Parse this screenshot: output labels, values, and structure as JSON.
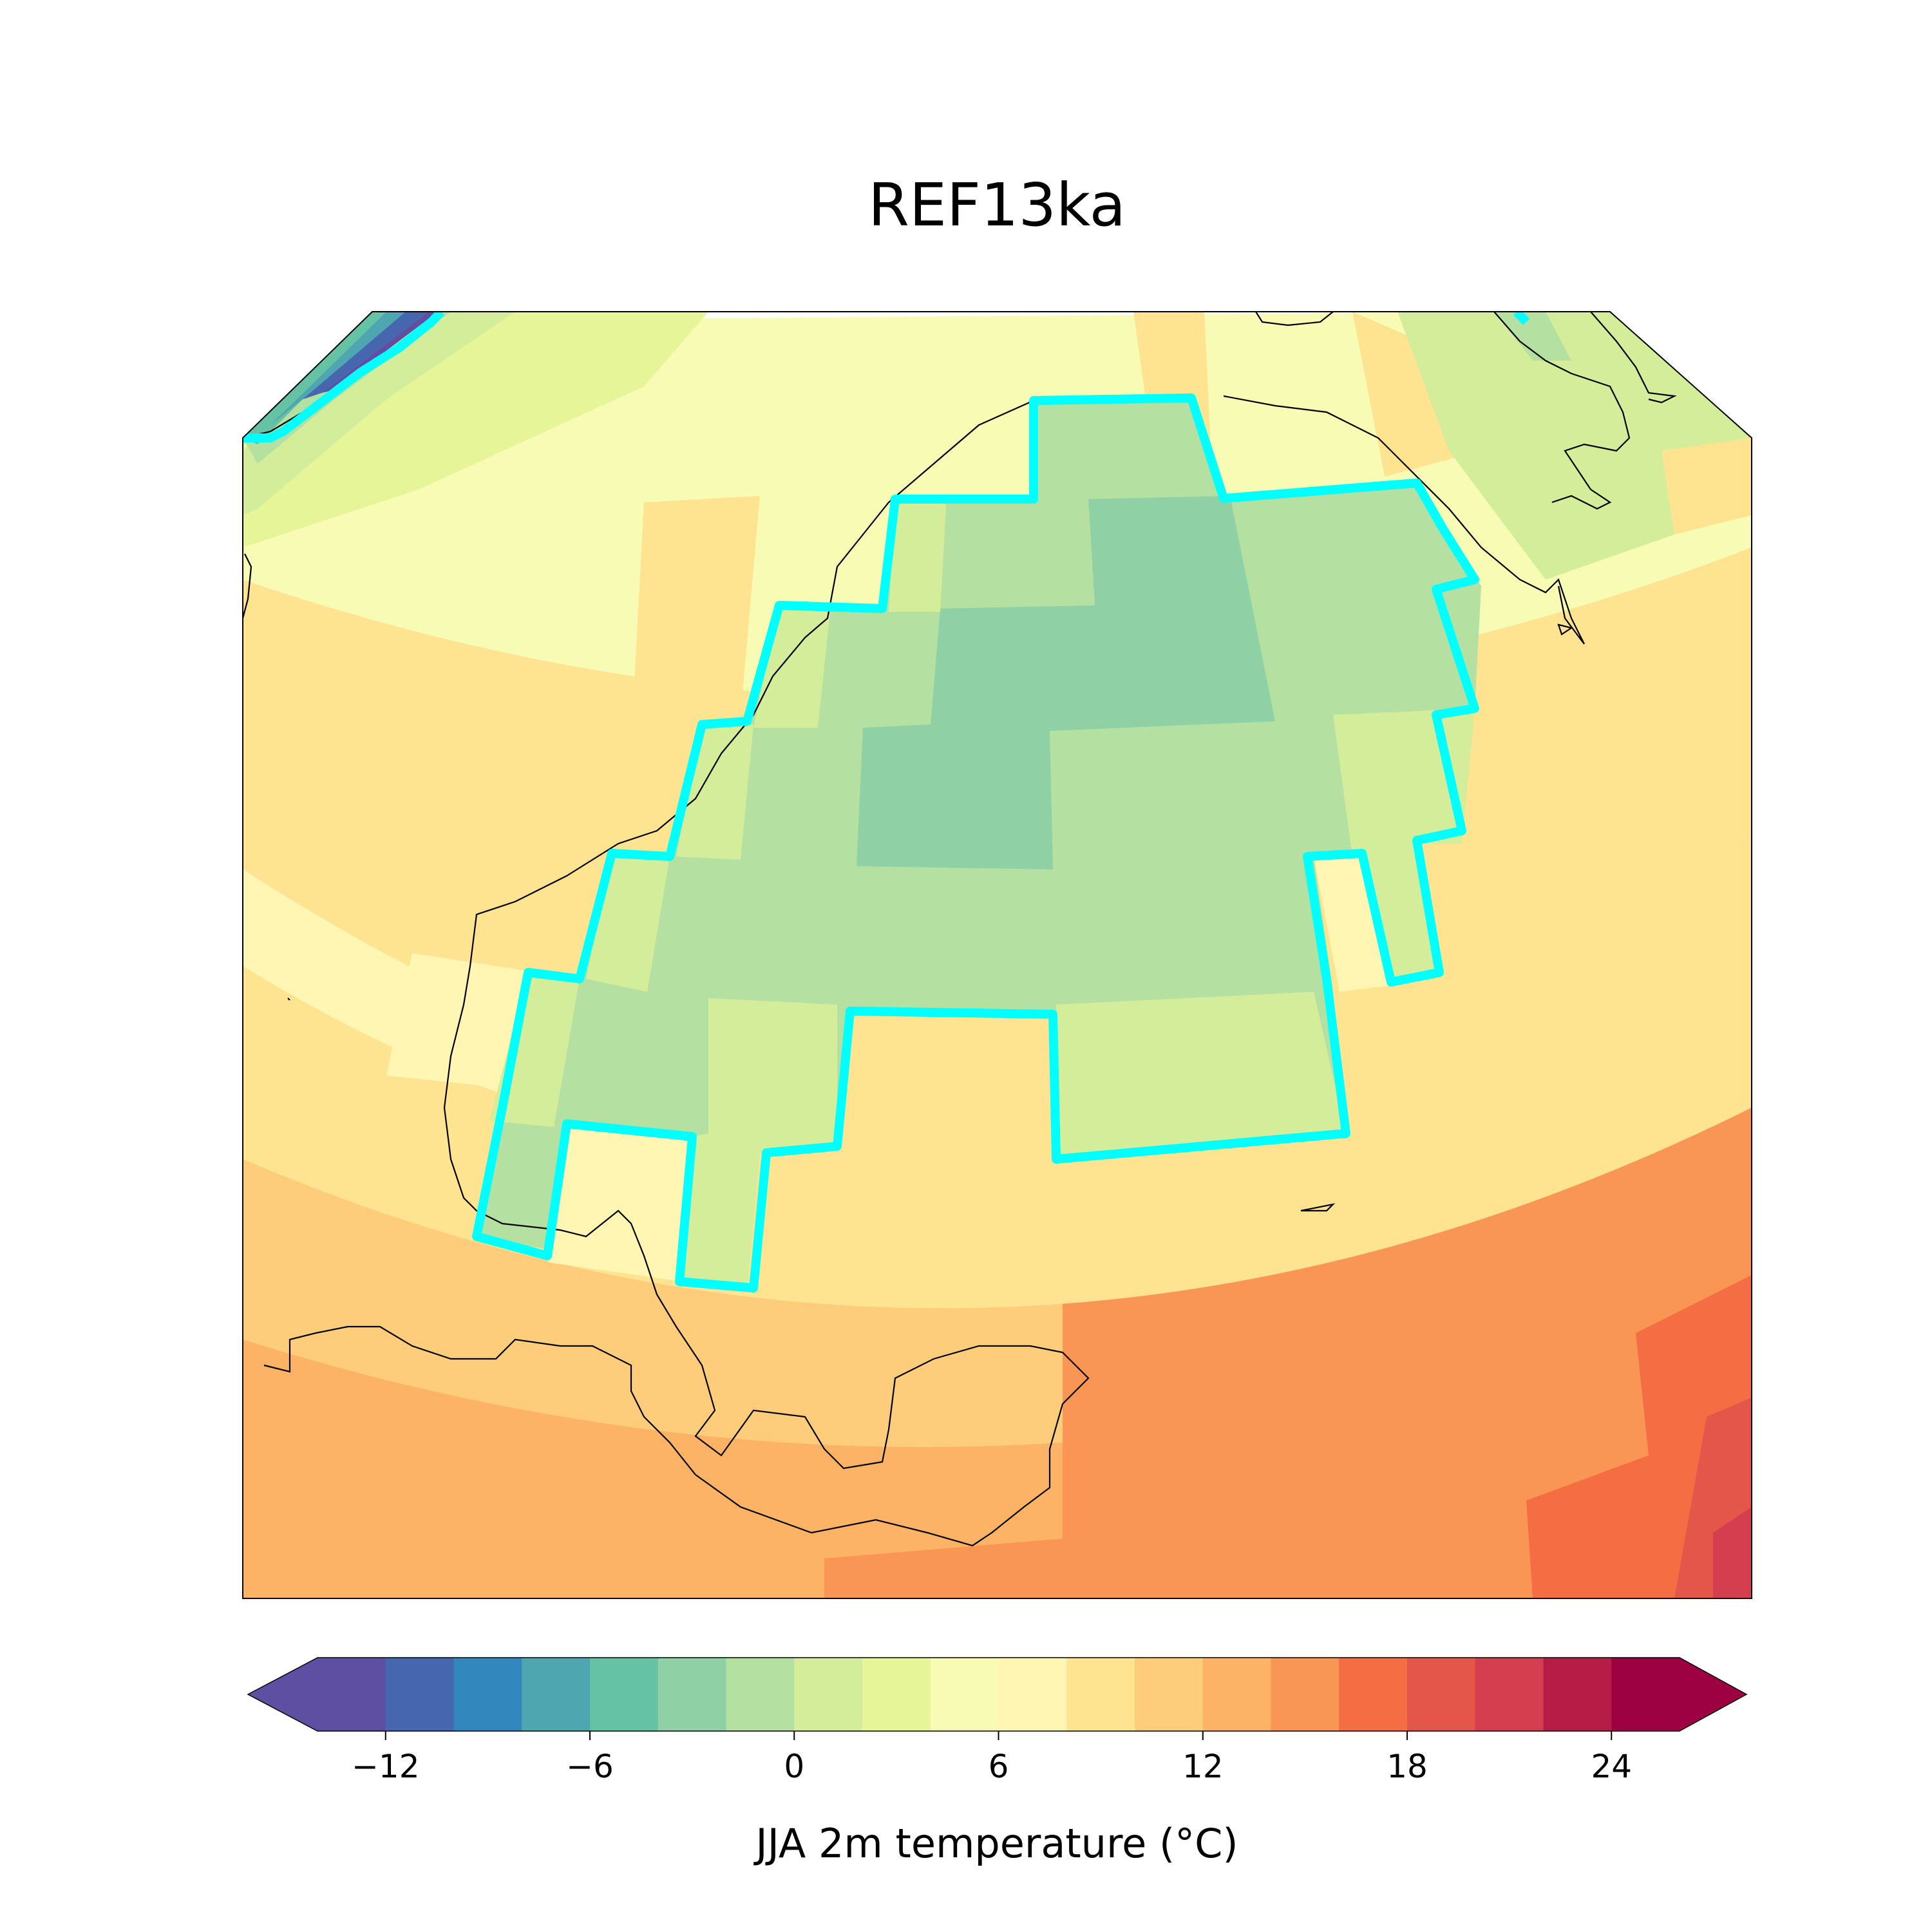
{
  "title": "REF13ka",
  "colorbar": {
    "label": "JJA 2m temperature (°C)",
    "min": -14,
    "max": 26,
    "step": 2,
    "extend": "both",
    "ticks": [
      -12,
      -6,
      0,
      6,
      12,
      18,
      24
    ],
    "tick_labels": [
      "−12",
      "−6",
      "0",
      "6",
      "12",
      "18",
      "24"
    ],
    "colormap": "Spectral_r",
    "colors": [
      "#5e4fa2",
      "#4666b0",
      "#3288bd",
      "#4ea7b0",
      "#66c2a5",
      "#8fd1a4",
      "#b4e0a1",
      "#d4ed9b",
      "#e6f598",
      "#f7fbb3",
      "#fff6b3",
      "#fee491",
      "#fdcd7b",
      "#fdb366",
      "#f99555",
      "#f46d43",
      "#e45649",
      "#d53e4f",
      "#b71c47",
      "#9e0142"
    ],
    "over_color": "#9e0142",
    "under_color": "#5e4fa2"
  },
  "map": {
    "variable": "JJA 2m temperature",
    "unit": "°C",
    "ice_sheet_outline_color": "#00ffff",
    "coastline_color": "#000000"
  }
}
